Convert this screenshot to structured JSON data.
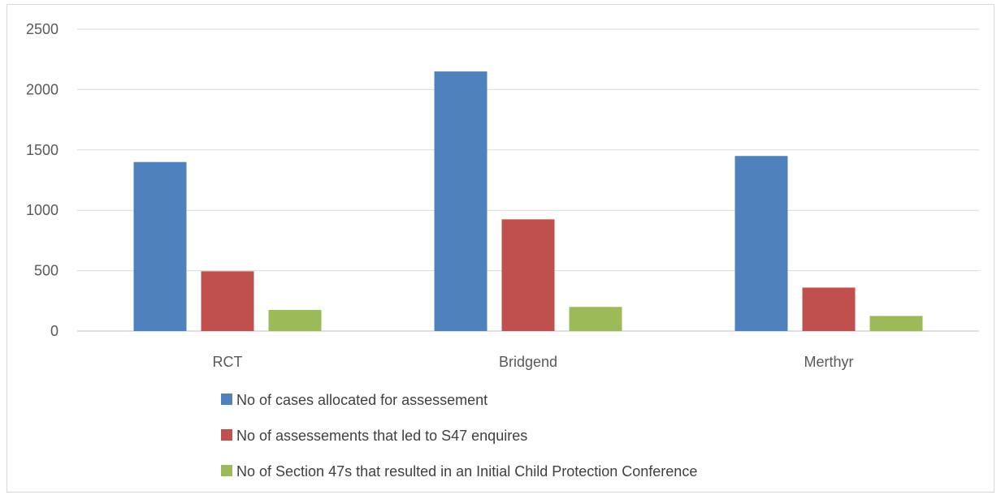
{
  "chart_data": {
    "type": "bar",
    "title": "",
    "xlabel": "",
    "ylabel": "",
    "categories": [
      "RCT",
      "Bridgend",
      "Merthyr"
    ],
    "ylim": [
      0,
      2500
    ],
    "yticks": [
      "0",
      "500",
      "1000",
      "1500",
      "2000",
      "2500"
    ],
    "ytick_values": [
      0,
      500,
      1000,
      1500,
      2000,
      2500
    ],
    "grid": true,
    "legend_position": "bottom",
    "series": [
      {
        "name": "No of cases allocated for assessement",
        "color": "#4f81bd",
        "values": [
          1400,
          2150,
          1450
        ]
      },
      {
        "name": "No of assessements that led to S47 enquires",
        "color": "#c0504d",
        "values": [
          495,
          925,
          360
        ]
      },
      {
        "name": "No of Section 47s that resulted in an Initial Child Protection Conference",
        "color": "#9bbb59",
        "values": [
          175,
          200,
          125
        ]
      }
    ]
  }
}
